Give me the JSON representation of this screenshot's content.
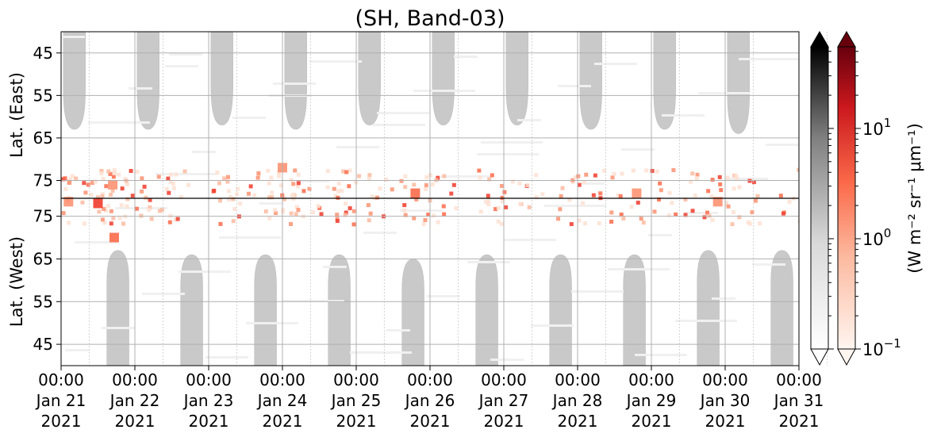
{
  "chart_data": {
    "type": "heatmap",
    "title": "(SH, Band-03)",
    "ylabel_top": "Lat. (East)",
    "ylabel_bottom": "Lat. (West)",
    "yticks_top": [
      45,
      55,
      65,
      75
    ],
    "yticks_bottom": [
      75,
      65,
      55,
      45
    ],
    "x_ticks": [
      {
        "time": "00:00",
        "date": "Jan 21",
        "year": "2021"
      },
      {
        "time": "00:00",
        "date": "Jan 22",
        "year": "2021"
      },
      {
        "time": "00:00",
        "date": "Jan 23",
        "year": "2021"
      },
      {
        "time": "00:00",
        "date": "Jan 24",
        "year": "2021"
      },
      {
        "time": "00:00",
        "date": "Jan 25",
        "year": "2021"
      },
      {
        "time": "00:00",
        "date": "Jan 26",
        "year": "2021"
      },
      {
        "time": "00:00",
        "date": "Jan 27",
        "year": "2021"
      },
      {
        "time": "00:00",
        "date": "Jan 28",
        "year": "2021"
      },
      {
        "time": "00:00",
        "date": "Jan 29",
        "year": "2021"
      },
      {
        "time": "00:00",
        "date": "Jan 30",
        "year": "2021"
      },
      {
        "time": "00:00",
        "date": "Jan 31",
        "year": "2021"
      }
    ],
    "colorbar_label": "(W m⁻² sr⁻¹ μm⁻¹)",
    "colorbar_scale": "log",
    "colorbar_ticks": [
      {
        "base": "10",
        "exp": "1"
      },
      {
        "base": "10",
        "exp": "0"
      },
      {
        "base": "10",
        "exp": "−1"
      }
    ],
    "colormaps": [
      "Greys",
      "Reds"
    ],
    "grid": true,
    "night_day_offsets": [
      0.19,
      0.36,
      0.77,
      0.95,
      0.93,
      0.93,
      0.94,
      0.95,
      0.93,
      0.91,
      0.85
    ],
    "gray_cap_top_lat": [
      63,
      63,
      62,
      63,
      62,
      62,
      62,
      63,
      63,
      64,
      64
    ],
    "gray_cap_bottom_lat": [
      67,
      66,
      66,
      66,
      65,
      66,
      66,
      66,
      67,
      67,
      67
    ],
    "emission_patches": [
      {
        "day": 0.1,
        "lat": 80,
        "side": "east",
        "value": 2.0
      },
      {
        "day": 0.5,
        "lat": 78,
        "side": "west",
        "value": 8.0
      },
      {
        "day": 0.7,
        "lat": 76,
        "side": "east",
        "value": 3.0
      },
      {
        "day": 0.72,
        "lat": 70,
        "side": "west",
        "value": 5.0
      },
      {
        "day": 3.0,
        "lat": 72,
        "side": "east",
        "value": 3.0
      },
      {
        "day": 4.8,
        "lat": 78,
        "side": "east",
        "value": 6.0
      },
      {
        "day": 7.8,
        "lat": 78,
        "side": "east",
        "value": 2.0
      },
      {
        "day": 8.9,
        "lat": 80,
        "side": "east",
        "value": 2.5
      }
    ]
  }
}
